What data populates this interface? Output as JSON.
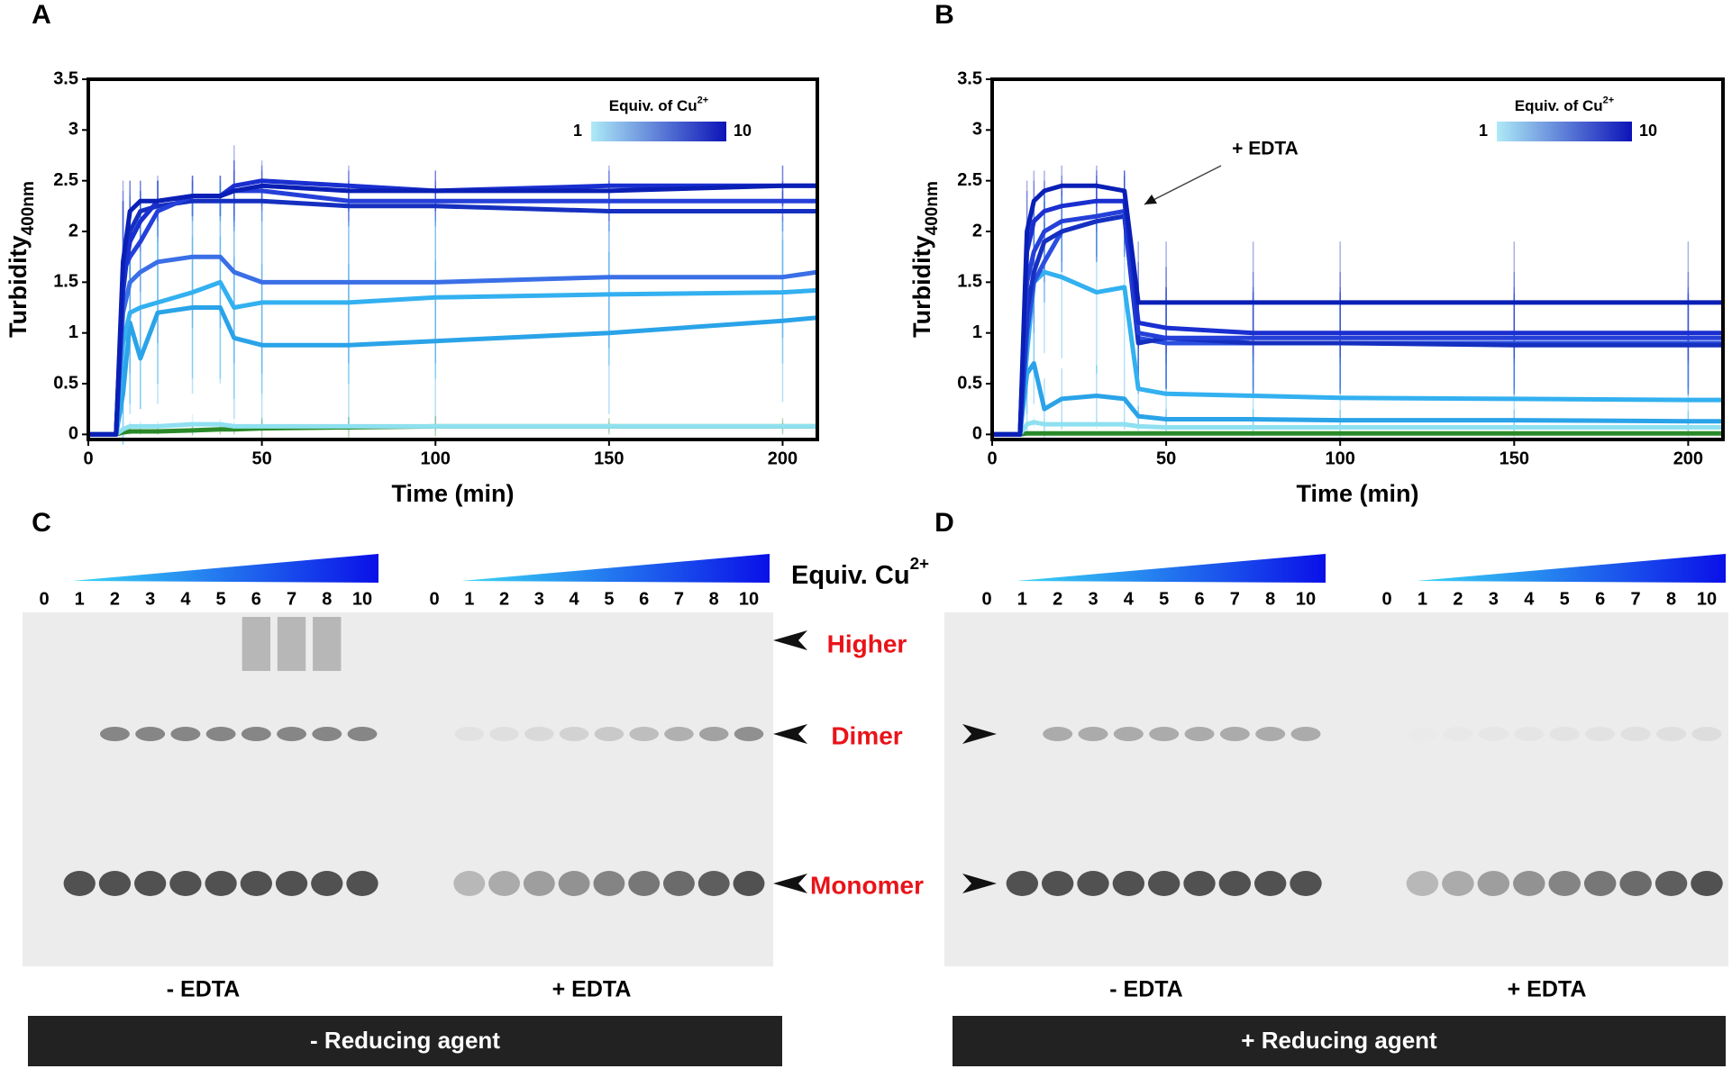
{
  "chart_data": [
    {
      "type": "line",
      "panel": "A",
      "x_label": "Time (min)",
      "y_label": "Turbidity",
      "y_label_sub": "400nm",
      "xlim": [
        0,
        210
      ],
      "ylim": [
        -0.05,
        3.5
      ],
      "xticks": [
        0,
        50,
        100,
        150,
        200
      ],
      "yticks": [
        0,
        0.5,
        1,
        1.5,
        2,
        2.5,
        3,
        3.5
      ],
      "colorbar": {
        "title": "Equiv. of Cu",
        "title_sup": "2+",
        "ticks": [
          1,
          10
        ],
        "colors": [
          "#aeeaf7",
          "#0d13b8"
        ]
      },
      "x": [
        0,
        8,
        10,
        12,
        15,
        20,
        30,
        38,
        42,
        50,
        75,
        100,
        150,
        200,
        210
      ],
      "series": [
        {
          "color": "#0a1fb5",
          "values": [
            0,
            0,
            1.7,
            2.2,
            2.3,
            2.3,
            2.35,
            2.35,
            2.4,
            2.45,
            2.4,
            2.4,
            2.4,
            2.45,
            2.45
          ],
          "errors": [
            0,
            0,
            0.8,
            0.3,
            0.2,
            0.2,
            0.2,
            0.2,
            0.3,
            0.2,
            0.2,
            0.2,
            0.2,
            0.2,
            0.2
          ]
        },
        {
          "color": "#1a2fd0",
          "values": [
            0,
            0,
            1.5,
            1.9,
            2.1,
            2.3,
            2.35,
            2.35,
            2.45,
            2.5,
            2.45,
            2.4,
            2.45,
            2.45,
            2.45
          ],
          "errors": [
            0,
            0,
            0.8,
            0.4,
            0.3,
            0.2,
            0.2,
            0.2,
            0.4,
            0.2,
            0.2,
            0.2,
            0.2,
            0.2,
            0.2
          ]
        },
        {
          "color": "#2540d8",
          "values": [
            0,
            0,
            1.6,
            1.75,
            1.9,
            2.2,
            2.35,
            2.35,
            2.4,
            2.4,
            2.3,
            2.3,
            2.3,
            2.3,
            2.3
          ],
          "errors": [
            0,
            0,
            0.8,
            0.6,
            0.5,
            0.3,
            0.2,
            0.2,
            0.3,
            0.2,
            0.2,
            0.2,
            0.2,
            0.2,
            0.2
          ]
        },
        {
          "color": "#1530c0",
          "values": [
            0,
            0,
            1.4,
            2.0,
            2.2,
            2.25,
            2.3,
            2.3,
            2.3,
            2.3,
            2.25,
            2.25,
            2.2,
            2.2,
            2.2
          ],
          "errors": [
            0,
            0,
            0.9,
            0.5,
            0.3,
            0.3,
            0.2,
            0.2,
            0.3,
            0.2,
            0.2,
            0.2,
            0.2,
            0.2,
            0.2
          ]
        },
        {
          "color": "#3a6fe6",
          "values": [
            0,
            0,
            1.2,
            1.5,
            1.6,
            1.7,
            1.75,
            1.75,
            1.6,
            1.5,
            1.5,
            1.5,
            1.55,
            1.55,
            1.6
          ],
          "errors": [
            0,
            0,
            1.0,
            0.9,
            0.8,
            0.8,
            0.7,
            0.7,
            0.9,
            0.9,
            0.8,
            0.8,
            0.7,
            0.6,
            0.6
          ]
        },
        {
          "color": "#33b0f0",
          "values": [
            0,
            0,
            0.9,
            1.2,
            1.25,
            1.3,
            1.4,
            1.5,
            1.25,
            1.3,
            1.3,
            1.35,
            1.38,
            1.4,
            1.42
          ],
          "errors": [
            0,
            0,
            1.0,
            1.0,
            1.0,
            1.0,
            1.0,
            1.0,
            0.9,
            0.9,
            0.8,
            0.8,
            0.7,
            0.7,
            0.7
          ]
        },
        {
          "color": "#2aa3e8",
          "values": [
            0,
            0,
            0.4,
            1.1,
            0.75,
            1.2,
            1.25,
            1.25,
            0.95,
            0.88,
            0.88,
            0.92,
            1.0,
            1.12,
            1.15
          ],
          "errors": [
            0,
            0,
            0.5,
            0.8,
            0.5,
            0.7,
            0.7,
            0.7,
            0.8,
            0.8,
            0.8,
            0.8,
            0.8,
            0.8,
            0.8
          ]
        },
        {
          "color": "#8fe0f0",
          "values": [
            0,
            0,
            0.05,
            0.08,
            0.08,
            0.08,
            0.1,
            0.1,
            0.08,
            0.08,
            0.08,
            0.08,
            0.08,
            0.08,
            0.08
          ],
          "errors": [
            0,
            0,
            0.05,
            0.05,
            0.05,
            0.05,
            0.1,
            0.05,
            0.05,
            0.05,
            0.05,
            0.05,
            0.05,
            0.05,
            0.05
          ]
        },
        {
          "color": "#2a8a2a",
          "values": [
            0,
            0,
            0.02,
            0.03,
            0.03,
            0.03,
            0.04,
            0.05,
            0.05,
            0.06,
            0.07,
            0.08,
            0.08,
            0.08,
            0.08
          ],
          "errors": [
            0,
            0,
            0.02,
            0.03,
            0.03,
            0.03,
            0.05,
            0.05,
            0.05,
            0.1,
            0.1,
            0.1,
            0.08,
            0.08,
            0.08
          ]
        }
      ]
    },
    {
      "type": "line",
      "panel": "B",
      "x_label": "Time (min)",
      "y_label": "Turbidity",
      "y_label_sub": "400nm",
      "xlim": [
        0,
        210
      ],
      "ylim": [
        -0.05,
        3.5
      ],
      "xticks": [
        0,
        50,
        100,
        150,
        200
      ],
      "yticks": [
        0,
        0.5,
        1,
        1.5,
        2,
        2.5,
        3,
        3.5
      ],
      "colorbar": {
        "title": "Equiv. of Cu",
        "title_sup": "2+",
        "ticks": [
          1,
          10
        ],
        "colors": [
          "#aeeaf7",
          "#0d13b8"
        ]
      },
      "annotation": "+ EDTA",
      "x": [
        0,
        8,
        10,
        12,
        15,
        20,
        30,
        38,
        42,
        50,
        75,
        100,
        150,
        200,
        210
      ],
      "series": [
        {
          "color": "#0a1fb5",
          "values": [
            0,
            0,
            2.0,
            2.3,
            2.4,
            2.45,
            2.45,
            2.4,
            1.3,
            1.3,
            1.3,
            1.3,
            1.3,
            1.3,
            1.3
          ],
          "errors": [
            0,
            0,
            0.5,
            0.3,
            0.2,
            0.2,
            0.2,
            0.2,
            0.6,
            0.6,
            0.6,
            0.6,
            0.6,
            0.6,
            0.6
          ]
        },
        {
          "color": "#1a2fd0",
          "values": [
            0,
            0,
            1.8,
            2.1,
            2.2,
            2.25,
            2.3,
            2.3,
            1.1,
            1.05,
            1.0,
            1.0,
            1.0,
            1.0,
            1.0
          ],
          "errors": [
            0,
            0,
            0.6,
            0.4,
            0.3,
            0.3,
            0.3,
            0.3,
            0.6,
            0.6,
            0.6,
            0.6,
            0.6,
            0.6,
            0.6
          ]
        },
        {
          "color": "#2540d8",
          "values": [
            0,
            0,
            1.5,
            1.8,
            2.0,
            2.1,
            2.15,
            2.2,
            1.0,
            0.95,
            0.95,
            0.95,
            0.95,
            0.95,
            0.95
          ],
          "errors": [
            0,
            0,
            0.6,
            0.5,
            0.4,
            0.4,
            0.4,
            0.4,
            0.5,
            0.5,
            0.5,
            0.5,
            0.5,
            0.5,
            0.5
          ]
        },
        {
          "color": "#1530c0",
          "values": [
            0,
            0,
            1.2,
            1.6,
            1.9,
            2.0,
            2.1,
            2.15,
            0.9,
            0.95,
            0.9,
            0.9,
            0.88,
            0.88,
            0.88
          ],
          "errors": [
            0,
            0,
            0.6,
            0.5,
            0.4,
            0.4,
            0.4,
            0.4,
            0.5,
            0.5,
            0.5,
            0.5,
            0.5,
            0.5,
            0.5
          ]
        },
        {
          "color": "#2a4fe0",
          "values": [
            0,
            0,
            1.0,
            1.5,
            1.7,
            2.0,
            2.1,
            2.15,
            0.95,
            0.9,
            0.9,
            0.9,
            0.9,
            0.9,
            0.9
          ],
          "errors": [
            0,
            0,
            0.6,
            0.5,
            0.4,
            0.4,
            0.4,
            0.4,
            0.5,
            0.5,
            0.5,
            0.5,
            0.5,
            0.5,
            0.5
          ]
        },
        {
          "color": "#33b0f0",
          "values": [
            0,
            0,
            0.8,
            1.5,
            1.6,
            1.55,
            1.4,
            1.45,
            0.45,
            0.4,
            0.38,
            0.36,
            0.35,
            0.34,
            0.34
          ],
          "errors": [
            0,
            0,
            0.8,
            0.8,
            0.8,
            0.8,
            0.8,
            0.8,
            0.4,
            0.4,
            0.4,
            0.4,
            0.4,
            0.4,
            0.4
          ]
        },
        {
          "color": "#2aa3e8",
          "values": [
            0,
            0,
            0.6,
            0.7,
            0.25,
            0.35,
            0.38,
            0.35,
            0.18,
            0.15,
            0.15,
            0.14,
            0.14,
            0.13,
            0.13
          ],
          "errors": [
            0,
            0,
            0.4,
            0.4,
            0.3,
            0.3,
            0.3,
            0.3,
            0.1,
            0.1,
            0.1,
            0.1,
            0.1,
            0.1,
            0.1
          ]
        },
        {
          "color": "#8fe0f0",
          "values": [
            0,
            0,
            0.1,
            0.12,
            0.1,
            0.1,
            0.1,
            0.1,
            0.08,
            0.07,
            0.07,
            0.07,
            0.07,
            0.07,
            0.07
          ],
          "errors": [
            0,
            0,
            0.05,
            0.05,
            0.05,
            0.05,
            0.05,
            0.05,
            0.05,
            0.05,
            0.05,
            0.05,
            0.05,
            0.05,
            0.05
          ]
        },
        {
          "color": "#2a8a2a",
          "values": [
            0,
            0,
            0.01,
            0.01,
            0.01,
            0.01,
            0.01,
            0.01,
            0.01,
            0.01,
            0.01,
            0.01,
            0.01,
            0.01,
            0.01
          ],
          "errors": [
            0,
            0,
            0.02,
            0.02,
            0.02,
            0.02,
            0.02,
            0.02,
            0.02,
            0.02,
            0.02,
            0.02,
            0.02,
            0.02,
            0.02
          ]
        }
      ]
    }
  ],
  "gradient_label": "Equiv. Cu",
  "gradient_label_sup": "2+",
  "gradient_colors": [
    "#3ad8f5",
    "#0a10e8"
  ],
  "band_labels": [
    "Higher",
    "Dimer",
    "Monomer"
  ],
  "gels": [
    {
      "panel": "C",
      "reducing": "- Reducing agent",
      "groups": [
        {
          "condition": "- EDTA",
          "lanes": [
            0,
            1,
            2,
            3,
            4,
            5,
            6,
            7,
            8,
            10
          ]
        },
        {
          "condition": "+ EDTA",
          "lanes": [
            0,
            1,
            2,
            3,
            4,
            5,
            6,
            7,
            8,
            10
          ]
        }
      ]
    },
    {
      "panel": "D",
      "reducing": "+ Reducing agent",
      "groups": [
        {
          "condition": "- EDTA",
          "lanes": [
            0,
            1,
            2,
            3,
            4,
            5,
            6,
            7,
            8,
            10
          ]
        },
        {
          "condition": "+ EDTA",
          "lanes": [
            0,
            1,
            2,
            3,
            4,
            5,
            6,
            7,
            8,
            10
          ]
        }
      ]
    }
  ]
}
